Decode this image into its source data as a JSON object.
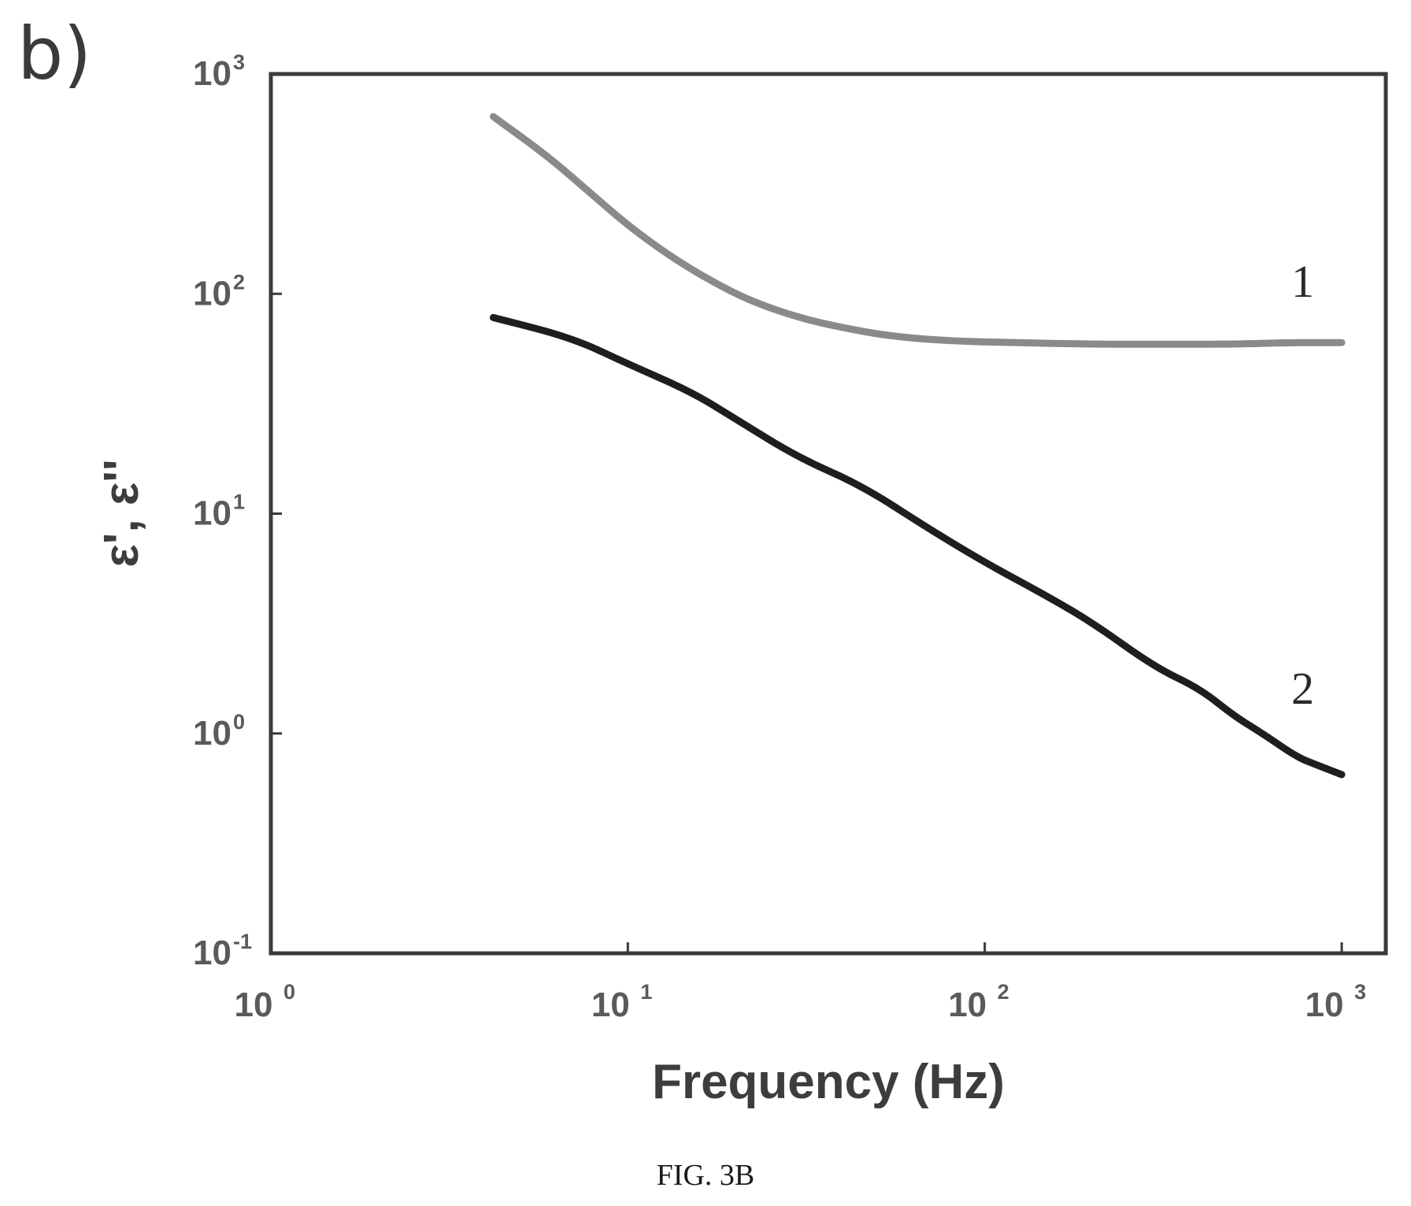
{
  "panel_label": "b)",
  "caption": "FIG. 3B",
  "colors": {
    "series_1": "#8a8a8a",
    "series_2": "#1e1e1e",
    "frame": "#3a3a3a"
  },
  "chart_data": {
    "type": "line",
    "xlabel": "Frequency (Hz)",
    "ylabel": "ε', ε''",
    "xscale": "log",
    "yscale": "log",
    "xlim": [
      1,
      1000
    ],
    "ylim": [
      0.1,
      1000
    ],
    "x_ticks": [
      {
        "value": 1,
        "base": "10",
        "exp": "0"
      },
      {
        "value": 10,
        "base": "10",
        "exp": "1"
      },
      {
        "value": 100,
        "base": "10",
        "exp": "2"
      },
      {
        "value": 1000,
        "base": "10",
        "exp": "3"
      }
    ],
    "y_ticks": [
      {
        "value": 0.1,
        "base": "10",
        "exp": "-1"
      },
      {
        "value": 1,
        "base": "10",
        "exp": "0"
      },
      {
        "value": 10,
        "base": "10",
        "exp": "1"
      },
      {
        "value": 100,
        "base": "10",
        "exp": "2"
      },
      {
        "value": 1000,
        "base": "10",
        "exp": "3"
      }
    ],
    "grid": false,
    "legend": "none",
    "series": [
      {
        "label": "1",
        "points": [
          [
            4.2,
            640
          ],
          [
            6.0,
            420
          ],
          [
            8.0,
            280
          ],
          [
            10.0,
            205
          ],
          [
            13.0,
            150
          ],
          [
            17.0,
            115
          ],
          [
            22.0,
            93
          ],
          [
            30.0,
            78
          ],
          [
            40.0,
            70
          ],
          [
            55.0,
            64
          ],
          [
            80.0,
            61
          ],
          [
            120.0,
            60
          ],
          [
            200.0,
            59
          ],
          [
            300.0,
            59
          ],
          [
            500.0,
            59
          ],
          [
            700.0,
            60
          ],
          [
            1000.0,
            60
          ]
        ]
      },
      {
        "label": "2",
        "points": [
          [
            4.2,
            78
          ],
          [
            7.0,
            63
          ],
          [
            10.0,
            48
          ],
          [
            15.0,
            36
          ],
          [
            20.0,
            27
          ],
          [
            30.0,
            18
          ],
          [
            45.0,
            13.5
          ],
          [
            70.0,
            8.5
          ],
          [
            100.0,
            6.0
          ],
          [
            150.0,
            4.2
          ],
          [
            200.0,
            3.2
          ],
          [
            300.0,
            2.0
          ],
          [
            400.0,
            1.6
          ],
          [
            500.0,
            1.2
          ],
          [
            600.0,
            1.0
          ],
          [
            750.0,
            0.78
          ],
          [
            850.0,
            0.72
          ],
          [
            1000.0,
            0.65
          ]
        ]
      }
    ]
  }
}
